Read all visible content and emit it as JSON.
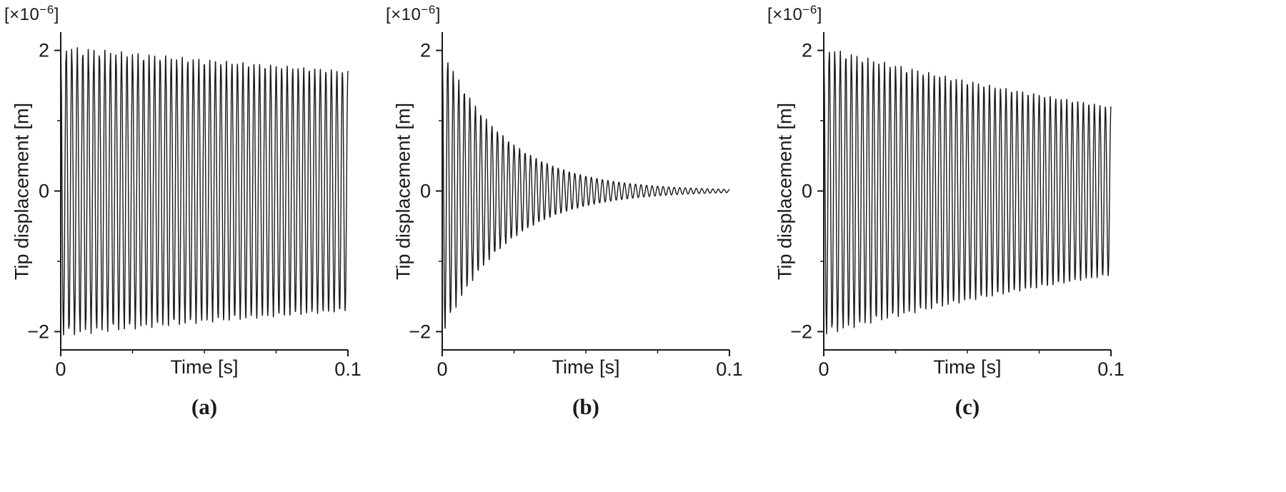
{
  "figure": {
    "background_color": "#ffffff",
    "ink_color": "#1a1a1a",
    "panel_captions": [
      "(a)",
      "(b)",
      "(c)"
    ]
  },
  "chart_data": [
    {
      "type": "line",
      "panel_caption": "(a)",
      "xlabel": "Time [s]",
      "ylabel": "Tip displacement [m]",
      "y_scale": {
        "prefix": "[×10",
        "exponent": "−6",
        "suffix": "]"
      },
      "xlim": [
        0,
        0.1
      ],
      "ylim": [
        -2.26,
        2.26
      ],
      "xticks": [
        {
          "value": 0,
          "label": "0"
        },
        {
          "value": 0.1,
          "label": "0.1"
        }
      ],
      "yticks": [
        {
          "value": 2,
          "label": "2"
        },
        {
          "value": 0,
          "label": "0"
        },
        {
          "value": -2,
          "label": "−2"
        }
      ],
      "x_minor_ticks": [
        0.025,
        0.05,
        0.075
      ],
      "y_minor_ticks": [
        1,
        -1
      ],
      "line_color": "#1a1a1a",
      "grid": false,
      "legend": null,
      "description": "Free vibration with very light damping: oscillation amplitude decays from 2×10⁻⁶ m to about 1.7×10⁻⁶ m over 0.1 s",
      "signal": {
        "model": "damped_cosine",
        "initial_amplitude": 2.0,
        "amplitude_units": "×10⁻⁶ m",
        "frequency_hz": 520,
        "decay_rate_per_s": 1.7,
        "amplitude_at_t_end": 1.69,
        "second_mode": {
          "amplitude": 0.07,
          "frequency_hz": 3450,
          "decay_rate_per_s": 12
        }
      }
    },
    {
      "type": "line",
      "panel_caption": "(b)",
      "xlabel": "Time [s]",
      "ylabel": "Tip displacement [m]",
      "y_scale": {
        "prefix": "[×10",
        "exponent": "−6",
        "suffix": "]"
      },
      "xlim": [
        0,
        0.1
      ],
      "ylim": [
        -2.26,
        2.26
      ],
      "xticks": [
        {
          "value": 0,
          "label": "0"
        },
        {
          "value": 0.1,
          "label": "0.1"
        }
      ],
      "yticks": [
        {
          "value": 2,
          "label": "2"
        },
        {
          "value": 0,
          "label": "0"
        },
        {
          "value": -2,
          "label": "−2"
        }
      ],
      "x_minor_ticks": [
        0.025,
        0.05,
        0.075
      ],
      "y_minor_ticks": [
        1,
        -1
      ],
      "line_color": "#1a1a1a",
      "grid": false,
      "legend": null,
      "description": "Strongly damped vibration: amplitude decays from 2×10⁻⁶ m to nearly zero by about t = 0.06 s",
      "signal": {
        "model": "damped_cosine",
        "initial_amplitude": 2.0,
        "amplitude_units": "×10⁻⁶ m",
        "frequency_hz": 520,
        "decay_rate_per_s": 45,
        "amplitude_at_t_end": 0.02,
        "second_mode": {
          "amplitude": 0.06,
          "frequency_hz": 3450,
          "decay_rate_per_s": 60
        }
      }
    },
    {
      "type": "line",
      "panel_caption": "(c)",
      "xlabel": "Time [s]",
      "ylabel": "Tip displacement [m]",
      "y_scale": {
        "prefix": "[×10",
        "exponent": "−6",
        "suffix": "]"
      },
      "xlim": [
        0,
        0.1
      ],
      "ylim": [
        -2.26,
        2.26
      ],
      "xticks": [
        {
          "value": 0,
          "label": "0"
        },
        {
          "value": 0.1,
          "label": "0.1"
        }
      ],
      "yticks": [
        {
          "value": 2,
          "label": "2"
        },
        {
          "value": 0,
          "label": "0"
        },
        {
          "value": -2,
          "label": "−2"
        }
      ],
      "x_minor_ticks": [
        0.025,
        0.05,
        0.075
      ],
      "y_minor_ticks": [
        1,
        -1
      ],
      "line_color": "#1a1a1a",
      "grid": false,
      "legend": null,
      "description": "Moderately damped vibration: amplitude decays from 2×10⁻⁶ m to about 1.2×10⁻⁶ m over 0.1 s",
      "signal": {
        "model": "damped_cosine",
        "initial_amplitude": 2.0,
        "amplitude_units": "×10⁻⁶ m",
        "frequency_hz": 520,
        "decay_rate_per_s": 5.2,
        "amplitude_at_t_end": 1.19,
        "second_mode": {
          "amplitude": 0.06,
          "frequency_hz": 3450,
          "decay_rate_per_s": 15
        }
      }
    }
  ]
}
